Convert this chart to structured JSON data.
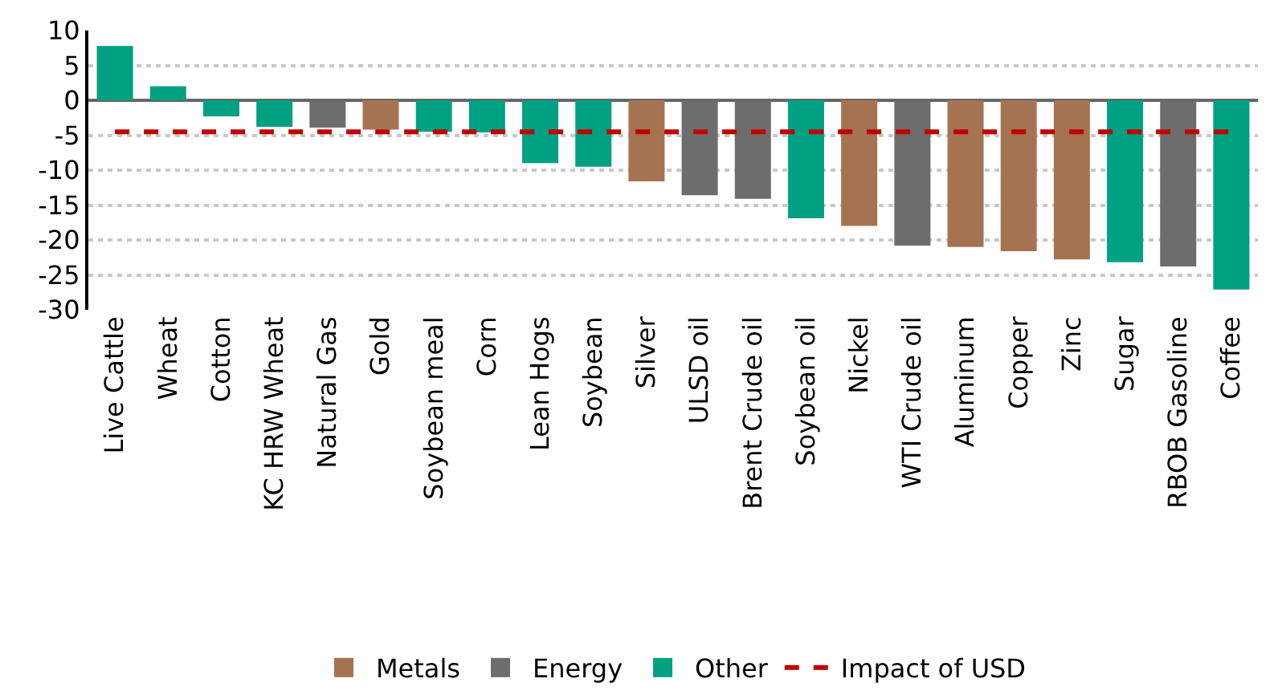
{
  "chart_data": {
    "type": "bar",
    "categories": [
      "Live Cattle",
      "Wheat",
      "Cotton",
      "KC HRW Wheat",
      "Natural Gas",
      "Gold",
      "Soybean meal",
      "Corn",
      "Lean Hogs",
      "Soybean",
      "Silver",
      "ULSD oil",
      "Brent Crude oil",
      "Soybean oil",
      "Nickel",
      "WTI Crude oil",
      "Aluminum",
      "Copper",
      "Zinc",
      "Sugar",
      "RBOB Gasoline",
      "Coffee"
    ],
    "series": [
      {
        "name": "Metals",
        "color": "#a67352",
        "values": [
          null,
          null,
          null,
          null,
          null,
          -4.2,
          null,
          null,
          null,
          null,
          -11.6,
          null,
          null,
          null,
          -18.0,
          null,
          -21.0,
          -21.6,
          -22.8,
          null,
          null,
          null
        ]
      },
      {
        "name": "Energy",
        "color": "#6d6d6d",
        "values": [
          null,
          null,
          null,
          null,
          -3.9,
          null,
          null,
          null,
          null,
          null,
          null,
          -13.6,
          -14.1,
          null,
          null,
          -20.8,
          null,
          null,
          null,
          null,
          -23.8,
          null
        ]
      },
      {
        "name": "Other",
        "color": "#00a082",
        "values": [
          7.8,
          2.0,
          -2.3,
          -3.8,
          null,
          null,
          -4.5,
          -4.6,
          -9.0,
          -9.5,
          null,
          null,
          null,
          -16.9,
          null,
          null,
          null,
          null,
          null,
          -23.2,
          null,
          -27.1
        ]
      }
    ],
    "ref_lines": [
      {
        "axis": "y",
        "value": -4.5,
        "label": "Impact of USD",
        "color": "#c00000",
        "line_style": "dashed"
      }
    ],
    "ylim": [
      -30,
      10
    ],
    "yticks": [
      -30,
      -25,
      -20,
      -15,
      -10,
      -5,
      0,
      5,
      10
    ],
    "grid": "y",
    "legend": "bottom"
  }
}
